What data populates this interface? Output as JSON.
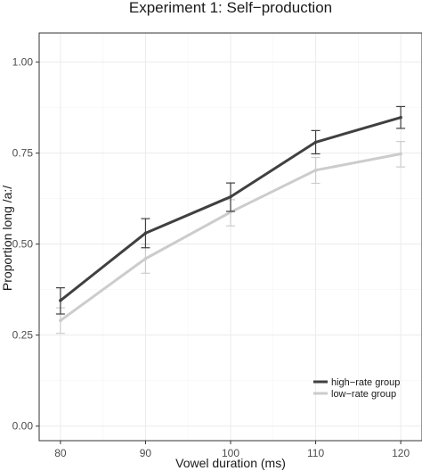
{
  "chart_data": {
    "type": "line",
    "title": "Experiment 1: Self−production",
    "xlabel": "Vowel duration (ms)",
    "ylabel": "Proportion long /a:/",
    "x": [
      80,
      90,
      100,
      110,
      120
    ],
    "xlim": [
      77.5,
      122.5
    ],
    "ylim": [
      -0.04,
      1.08
    ],
    "x_ticks": [
      "80",
      "90",
      "100",
      "110",
      "120"
    ],
    "y_ticks": [
      "0.00",
      "0.25",
      "0.50",
      "0.75",
      "1.00"
    ],
    "y_tick_values": [
      0,
      0.25,
      0.5,
      0.75,
      1.0
    ],
    "grid": true,
    "legend_position": "bottom-right",
    "series": [
      {
        "name": "high−rate group",
        "color": "#404040",
        "values": [
          0.345,
          0.53,
          0.63,
          0.78,
          0.848
        ],
        "err_low": [
          0.308,
          0.49,
          0.59,
          0.748,
          0.818
        ],
        "err_high": [
          0.38,
          0.57,
          0.668,
          0.812,
          0.878
        ]
      },
      {
        "name": "low−rate group",
        "color": "#cccccc",
        "values": [
          0.29,
          0.46,
          0.588,
          0.703,
          0.748
        ],
        "err_low": [
          0.255,
          0.42,
          0.55,
          0.667,
          0.712
        ],
        "err_high": [
          0.325,
          0.5,
          0.622,
          0.738,
          0.782
        ]
      }
    ]
  }
}
